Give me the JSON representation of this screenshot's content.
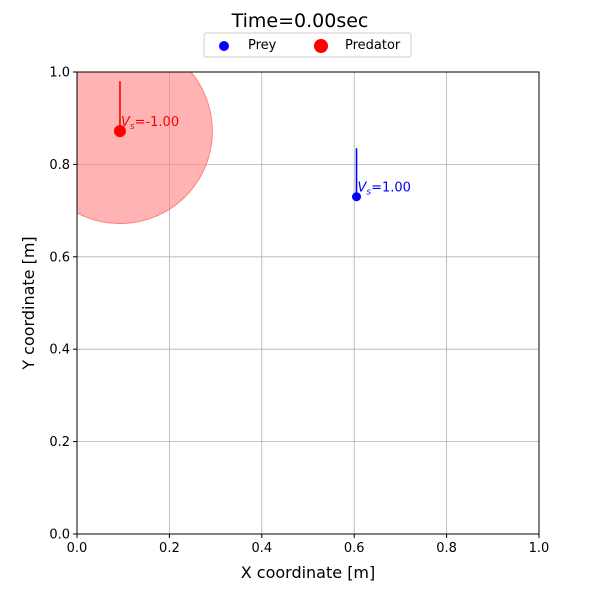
{
  "chart_data": {
    "type": "scatter",
    "title": "Time=0.00sec",
    "xlabel": "X coordinate [m]",
    "ylabel": "Y coordinate [m]",
    "xlim": [
      0,
      1
    ],
    "ylim": [
      0,
      1
    ],
    "x_ticks": [
      "0.0",
      "0.2",
      "0.4",
      "0.6",
      "0.8",
      "1.0"
    ],
    "y_ticks": [
      "0.0",
      "0.2",
      "0.4",
      "0.6",
      "0.8",
      "1.0"
    ],
    "grid": true,
    "legend": {
      "placement": "top-center",
      "entries": [
        "Prey",
        "Predator"
      ]
    },
    "series": [
      {
        "name": "Prey",
        "color": "#0000ff",
        "point": {
          "x": 0.605,
          "y": 0.73
        },
        "velocity_line": {
          "x": 0.605,
          "y_start": 0.73,
          "y_end": 0.835
        },
        "annotation_symbol": "V",
        "annotation_subscript": "s",
        "annotation_value": "=1.00"
      },
      {
        "name": "Predator",
        "color": "#ff0000",
        "point": {
          "x": 0.093,
          "y": 0.872
        },
        "velocity_line": {
          "x": 0.093,
          "y_start": 0.872,
          "y_end": 0.98
        },
        "annotation_symbol": "V",
        "annotation_subscript": "s",
        "annotation_value": "=-1.00",
        "sensing_radius": 0.2,
        "sensing_color": "#ff8080"
      }
    ]
  }
}
